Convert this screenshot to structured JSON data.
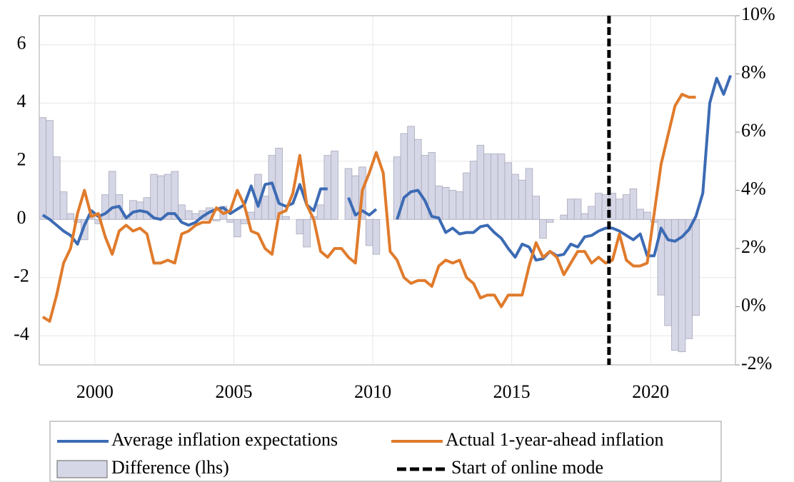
{
  "chart_data": {
    "type": "line",
    "x": [
      1998.125,
      1998.375,
      1998.625,
      1998.875,
      1999.125,
      1999.375,
      1999.625,
      1999.875,
      2000.125,
      2000.375,
      2000.625,
      2000.875,
      2001.125,
      2001.375,
      2001.625,
      2001.875,
      2002.125,
      2002.375,
      2002.625,
      2002.875,
      2003.125,
      2003.375,
      2003.625,
      2003.875,
      2004.125,
      2004.375,
      2004.625,
      2004.875,
      2005.125,
      2005.375,
      2005.625,
      2005.875,
      2006.125,
      2006.375,
      2006.625,
      2006.875,
      2007.125,
      2007.375,
      2007.625,
      2007.875,
      2008.125,
      2008.375,
      2008.625,
      2008.875,
      2009.125,
      2009.375,
      2009.625,
      2009.875,
      2010.125,
      2010.375,
      2010.625,
      2010.875,
      2011.125,
      2011.375,
      2011.625,
      2011.875,
      2012.125,
      2012.375,
      2012.625,
      2012.875,
      2013.125,
      2013.375,
      2013.625,
      2013.875,
      2014.125,
      2014.375,
      2014.625,
      2014.875,
      2015.125,
      2015.375,
      2015.625,
      2015.875,
      2016.125,
      2016.375,
      2016.625,
      2016.875,
      2017.125,
      2017.375,
      2017.625,
      2017.875,
      2018.125,
      2018.375,
      2018.625,
      2018.875,
      2019.125,
      2019.375,
      2019.625,
      2019.875,
      2020.125,
      2020.375,
      2020.625,
      2020.875,
      2021.125,
      2021.375,
      2021.625,
      2021.875,
      2022.125,
      2022.375,
      2022.625,
      2022.875
    ],
    "series": [
      {
        "name": "Difference (lhs)",
        "kind": "bar",
        "color": "#d5d6e6",
        "values": [
          3.5,
          3.4,
          2.15,
          0.95,
          0.2,
          -0.1,
          -0.7,
          0.15,
          -0.15,
          0.85,
          1.65,
          0.85,
          0.1,
          0.65,
          0.6,
          0.75,
          1.55,
          1.5,
          1.55,
          1.65,
          0.5,
          0.3,
          0.2,
          0.3,
          0.4,
          -0.05,
          0.45,
          -0.1,
          -0.6,
          -0.15,
          0.25,
          1.55,
          0.8,
          2.2,
          2.45,
          0.1,
          0.0,
          -0.5,
          -0.95,
          0.1,
          0.5,
          2.2,
          2.35,
          null,
          1.75,
          1.5,
          1.8,
          -0.9,
          -1.2,
          null,
          null,
          2.15,
          2.95,
          3.2,
          2.75,
          2.2,
          2.3,
          1.15,
          1.1,
          1.0,
          0.95,
          1.6,
          2.0,
          2.55,
          2.25,
          2.25,
          2.25,
          1.95,
          1.55,
          1.35,
          1.75,
          0.8,
          -0.65,
          -0.1,
          0.0,
          0.15,
          0.7,
          0.7,
          0.2,
          0.45,
          0.9,
          0.85,
          0.9,
          0.7,
          0.85,
          1.05,
          0.35,
          0.25,
          -0.1,
          -2.6,
          -3.65,
          -4.5,
          -4.55,
          -4.1,
          -3.3,
          null,
          null,
          null,
          null,
          null
        ]
      },
      {
        "name": "Average inflation expectations",
        "kind": "line",
        "color": "#3c6bb4",
        "values": [
          0.15,
          0,
          -0.2,
          -0.4,
          -0.55,
          -0.85,
          -0.2,
          0.3,
          0.1,
          0.2,
          0.4,
          0.45,
          0.05,
          0.25,
          0.3,
          0.25,
          0.05,
          0.0,
          0.2,
          0.2,
          -0.1,
          -0.2,
          -0.1,
          0.1,
          0.25,
          0.35,
          0.4,
          0.2,
          0.35,
          0.5,
          1.15,
          0.45,
          1.2,
          1.25,
          0.55,
          0.45,
          0.55,
          1.2,
          0.5,
          0.3,
          1.05,
          1.05,
          null,
          null,
          0.75,
          0.15,
          0.3,
          0.15,
          0.35,
          null,
          null,
          0.0,
          0.75,
          0.95,
          1.0,
          0.65,
          0.1,
          0.05,
          -0.45,
          -0.3,
          -0.5,
          -0.45,
          -0.45,
          -0.25,
          -0.2,
          -0.45,
          -0.65,
          -1.0,
          -1.3,
          -0.85,
          -0.95,
          -1.4,
          -1.35,
          -1.1,
          -1.25,
          -1.2,
          -0.85,
          -0.95,
          -0.6,
          -0.55,
          -0.4,
          -0.3,
          -0.3,
          -0.4,
          -0.55,
          -0.7,
          -0.5,
          -1.25,
          -1.25,
          -0.3,
          -0.7,
          -0.75,
          -0.6,
          -0.35,
          0.1,
          0.9,
          4.0,
          4.85,
          4.3,
          4.95
        ]
      },
      {
        "name": "Actual 1-year-ahead inflation",
        "kind": "line",
        "axis": "y2",
        "color": "#e07b2c",
        "values": [
          -0.35,
          -0.5,
          0.4,
          1.5,
          2.0,
          3.2,
          4.0,
          3.1,
          3.2,
          2.4,
          1.8,
          2.6,
          2.8,
          2.6,
          2.7,
          2.5,
          1.5,
          1.5,
          1.6,
          1.5,
          2.5,
          2.6,
          2.8,
          2.9,
          2.9,
          3.4,
          3.2,
          3.3,
          4.0,
          3.5,
          2.6,
          2.5,
          2.0,
          1.8,
          3.2,
          3.3,
          3.9,
          5.2,
          3.5,
          3.0,
          1.9,
          1.7,
          2.0,
          2.0,
          1.7,
          1.5,
          4.0,
          4.6,
          5.3,
          4.6,
          1.9,
          1.6,
          1.0,
          0.8,
          0.9,
          0.9,
          0.7,
          1.4,
          1.6,
          1.5,
          1.6,
          1.0,
          0.8,
          0.3,
          0.4,
          0.4,
          0.0,
          0.4,
          0.4,
          0.4,
          1.4,
          2.2,
          1.7,
          1.9,
          1.7,
          1.1,
          1.5,
          1.9,
          1.9,
          1.5,
          1.7,
          1.5,
          1.6,
          2.5,
          1.6,
          1.4,
          1.4,
          1.5,
          3.2,
          4.9,
          5.9,
          6.9,
          7.3,
          7.2,
          7.2,
          null,
          null,
          null,
          null,
          null
        ]
      }
    ],
    "vline": {
      "name": "Start of online mode",
      "x": 2018.5,
      "color": "#000000"
    },
    "xlim": [
      1998,
      2023.05
    ],
    "xticks": [
      2000,
      2005,
      2010,
      2015,
      2020
    ],
    "ylim": [
      -5,
      7
    ],
    "yticks": [
      -4,
      -2,
      0,
      2,
      4,
      6
    ],
    "y2lim": [
      -2,
      10
    ],
    "y2ticks": [
      {
        "value": -2,
        "label": "-2%"
      },
      {
        "value": 0,
        "label": "0%"
      },
      {
        "value": 2,
        "label": "2%"
      },
      {
        "value": 4,
        "label": "4%"
      },
      {
        "value": 6,
        "label": "6%"
      },
      {
        "value": 8,
        "label": "8%"
      },
      {
        "value": 10,
        "label": "10%"
      }
    ],
    "grid": true,
    "legend": "bottom"
  }
}
